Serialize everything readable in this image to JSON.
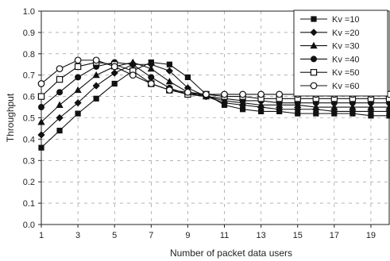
{
  "chart_data": {
    "type": "line",
    "title": "",
    "xlabel": "Number of packet data users",
    "ylabel": "Throughput",
    "xlim": [
      1,
      20
    ],
    "ylim": [
      0,
      1.0
    ],
    "x_ticks": [
      "1",
      "3",
      "5",
      "7",
      "9",
      "11",
      "13",
      "15",
      "17",
      "19"
    ],
    "y_ticks": [
      "0.0",
      "0.1",
      "0.2",
      "0.3",
      "0.4",
      "0.5",
      "0.6",
      "0.7",
      "0.8",
      "0.9",
      "1.0"
    ],
    "grid": true,
    "legend_position": "top-right",
    "x": [
      1,
      2,
      3,
      4,
      5,
      6,
      7,
      8,
      9,
      10,
      11,
      12,
      13,
      14,
      15,
      16,
      17,
      18,
      19,
      20
    ],
    "series": [
      {
        "name": "Kv =10",
        "marker": "filled-square",
        "values": [
          0.36,
          0.44,
          0.52,
          0.59,
          0.66,
          0.72,
          0.76,
          0.75,
          0.69,
          0.61,
          0.56,
          0.54,
          0.53,
          0.53,
          0.52,
          0.52,
          0.52,
          0.52,
          0.51,
          0.51
        ]
      },
      {
        "name": "Kv =20",
        "marker": "filled-diamond",
        "values": [
          0.42,
          0.5,
          0.57,
          0.65,
          0.71,
          0.75,
          0.75,
          0.72,
          0.64,
          0.6,
          0.57,
          0.56,
          0.55,
          0.54,
          0.54,
          0.54,
          0.53,
          0.53,
          0.53,
          0.53
        ]
      },
      {
        "name": "Kv =30",
        "marker": "filled-triangle",
        "values": [
          0.48,
          0.56,
          0.63,
          0.7,
          0.74,
          0.76,
          0.73,
          0.67,
          0.62,
          0.6,
          0.58,
          0.57,
          0.56,
          0.56,
          0.56,
          0.55,
          0.55,
          0.55,
          0.55,
          0.55
        ]
      },
      {
        "name": "Kv =40",
        "marker": "filled-circle",
        "values": [
          0.55,
          0.62,
          0.69,
          0.74,
          0.76,
          0.75,
          0.69,
          0.64,
          0.61,
          0.6,
          0.59,
          0.58,
          0.58,
          0.57,
          0.57,
          0.57,
          0.57,
          0.57,
          0.57,
          0.57
        ]
      },
      {
        "name": "Kv =50",
        "marker": "open-square",
        "values": [
          0.6,
          0.68,
          0.74,
          0.76,
          0.75,
          0.72,
          0.66,
          0.63,
          0.61,
          0.61,
          0.6,
          0.6,
          0.59,
          0.59,
          0.59,
          0.59,
          0.59,
          0.59,
          0.59,
          0.59
        ]
      },
      {
        "name": "Kv =60",
        "marker": "open-circle",
        "values": [
          0.66,
          0.73,
          0.77,
          0.77,
          0.74,
          0.7,
          0.66,
          0.63,
          0.62,
          0.61,
          0.61,
          0.61,
          0.61,
          0.61,
          0.61,
          0.61,
          0.61,
          0.61,
          0.61,
          0.61
        ]
      }
    ]
  }
}
